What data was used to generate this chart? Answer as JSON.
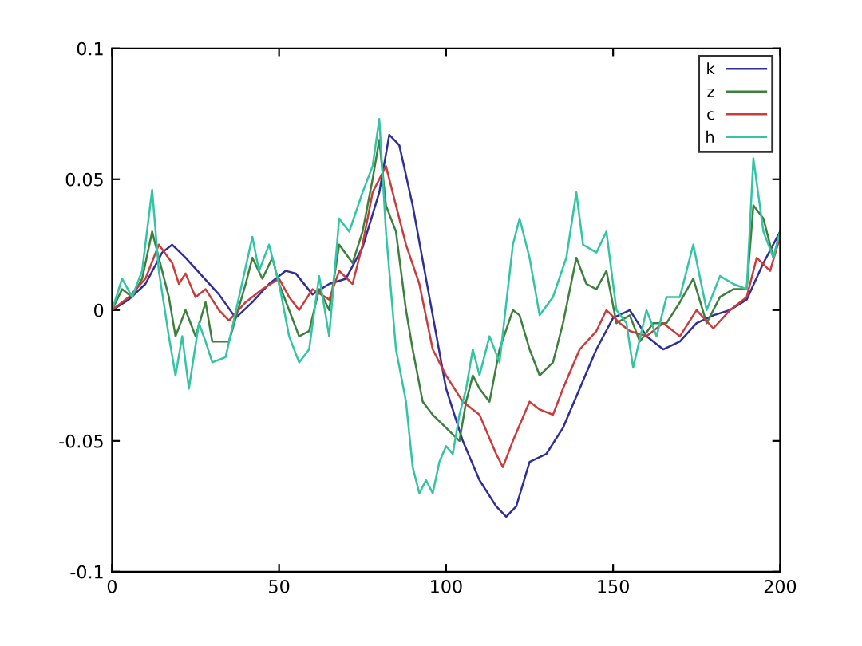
{
  "chart_data": {
    "type": "line",
    "xlim": [
      0,
      200
    ],
    "ylim": [
      -0.1,
      0.1
    ],
    "xticks": [
      0,
      50,
      100,
      150,
      200
    ],
    "yticks": [
      -0.1,
      -0.05,
      0,
      0.05,
      0.1
    ],
    "grid": false,
    "legend": "top right",
    "marker": "none",
    "line_style": "solid",
    "series": [
      {
        "name": "k",
        "color": "#2e2e9c",
        "x": [
          0,
          5,
          10,
          15,
          18,
          22,
          27,
          32,
          37,
          42,
          47,
          52,
          55,
          60,
          65,
          70,
          75,
          80,
          83,
          86,
          90,
          95,
          100,
          105,
          110,
          115,
          118,
          121,
          125,
          130,
          135,
          140,
          145,
          150,
          155,
          160,
          165,
          170,
          175,
          180,
          185,
          190,
          195,
          200
        ],
        "values": [
          0,
          0.004,
          0.01,
          0.022,
          0.025,
          0.02,
          0.013,
          0.006,
          -0.003,
          0.003,
          0.01,
          0.015,
          0.014,
          0.006,
          0.01,
          0.012,
          0.024,
          0.045,
          0.067,
          0.063,
          0.04,
          0.005,
          -0.03,
          -0.05,
          -0.065,
          -0.075,
          -0.079,
          -0.075,
          -0.058,
          -0.055,
          -0.045,
          -0.03,
          -0.015,
          -0.003,
          0,
          -0.01,
          -0.015,
          -0.012,
          -0.005,
          -0.002,
          0,
          0.004,
          0.018,
          0.03
        ]
      },
      {
        "name": "z",
        "color": "#3d7f3d",
        "x": [
          0,
          3,
          6,
          9,
          12,
          14,
          17,
          19,
          22,
          25,
          28,
          30,
          35,
          40,
          42,
          45,
          48,
          50,
          53,
          56,
          59,
          62,
          65,
          68,
          72,
          75,
          78,
          80,
          82,
          85,
          88,
          90,
          93,
          96,
          100,
          104,
          106,
          108,
          110,
          113,
          116,
          120,
          122,
          125,
          128,
          132,
          135,
          139,
          142,
          145,
          148,
          151,
          155,
          158,
          162,
          166,
          170,
          174,
          178,
          182,
          186,
          190,
          192,
          195,
          198,
          200
        ],
        "values": [
          0,
          0.008,
          0.005,
          0.012,
          0.03,
          0.02,
          0.005,
          -0.01,
          0,
          -0.01,
          0.003,
          -0.012,
          -0.012,
          0.01,
          0.02,
          0.012,
          0.02,
          0.01,
          0,
          -0.01,
          -0.008,
          0.008,
          0,
          0.025,
          0.018,
          0.03,
          0.05,
          0.065,
          0.04,
          0.03,
          0,
          -0.015,
          -0.035,
          -0.04,
          -0.045,
          -0.05,
          -0.035,
          -0.025,
          -0.03,
          -0.035,
          -0.015,
          0,
          -0.002,
          -0.015,
          -0.025,
          -0.02,
          -0.005,
          0.02,
          0.01,
          0.008,
          0.015,
          -0.005,
          -0.002,
          -0.012,
          -0.005,
          -0.005,
          0.003,
          0.012,
          -0.005,
          0.005,
          0.008,
          0.008,
          0.04,
          0.035,
          0.02,
          0.03
        ]
      },
      {
        "name": "c",
        "color": "#cc3b3b",
        "x": [
          0,
          5,
          10,
          14,
          18,
          20,
          22,
          25,
          28,
          32,
          35,
          40,
          45,
          50,
          53,
          56,
          60,
          65,
          68,
          72,
          75,
          78,
          82,
          85,
          88,
          92,
          96,
          100,
          105,
          110,
          115,
          117,
          120,
          125,
          128,
          132,
          135,
          140,
          145,
          148,
          152,
          155,
          160,
          165,
          170,
          175,
          180,
          185,
          190,
          193,
          197,
          200
        ],
        "values": [
          0,
          0.005,
          0.012,
          0.025,
          0.018,
          0.01,
          0.014,
          0.005,
          0.008,
          0,
          -0.004,
          0.003,
          0.008,
          0.012,
          0.005,
          0,
          0.008,
          0.004,
          0.015,
          0.01,
          0.025,
          0.045,
          0.055,
          0.04,
          0.025,
          0.01,
          -0.015,
          -0.025,
          -0.035,
          -0.04,
          -0.055,
          -0.06,
          -0.05,
          -0.035,
          -0.038,
          -0.04,
          -0.03,
          -0.015,
          -0.008,
          0,
          -0.005,
          -0.008,
          -0.01,
          -0.005,
          -0.01,
          0,
          -0.007,
          0,
          0.005,
          0.02,
          0.015,
          0.028
        ]
      },
      {
        "name": "h",
        "color": "#33c4a4",
        "x": [
          0,
          3,
          6,
          9,
          12,
          14,
          17,
          19,
          21,
          23,
          26,
          28,
          30,
          34,
          38,
          42,
          44,
          47,
          50,
          53,
          56,
          59,
          62,
          65,
          68,
          71,
          75,
          78,
          80,
          82,
          85,
          88,
          90,
          92,
          94,
          96,
          98,
          100,
          102,
          104,
          106,
          108,
          110,
          113,
          116,
          120,
          122,
          125,
          128,
          132,
          136,
          139,
          141,
          145,
          148,
          151,
          154,
          156,
          160,
          163,
          166,
          170,
          174,
          178,
          182,
          186,
          190,
          192,
          195,
          198,
          200
        ],
        "values": [
          0,
          0.012,
          0.005,
          0.015,
          0.046,
          0.015,
          -0.01,
          -0.025,
          -0.01,
          -0.03,
          -0.005,
          -0.012,
          -0.02,
          -0.018,
          0.005,
          0.028,
          0.015,
          0.025,
          0.01,
          -0.01,
          -0.02,
          -0.015,
          0.013,
          -0.01,
          0.035,
          0.03,
          0.045,
          0.055,
          0.073,
          0.03,
          -0.015,
          -0.035,
          -0.06,
          -0.07,
          -0.065,
          -0.07,
          -0.058,
          -0.052,
          -0.055,
          -0.04,
          -0.03,
          -0.015,
          -0.025,
          -0.01,
          -0.02,
          0.025,
          0.035,
          0.02,
          -0.002,
          0.005,
          0.02,
          0.045,
          0.025,
          0.022,
          0.03,
          0,
          -0.005,
          -0.022,
          0,
          -0.01,
          0.005,
          0.005,
          0.025,
          0,
          0.013,
          0.01,
          0.008,
          0.058,
          0.03,
          0.02,
          0.03
        ]
      }
    ]
  }
}
